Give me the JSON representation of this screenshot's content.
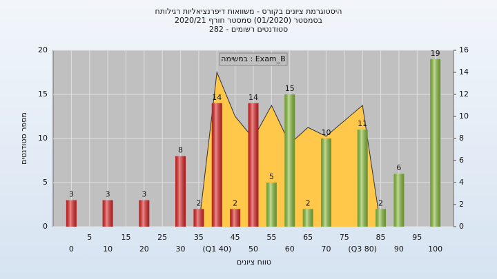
{
  "chart_data": {
    "type": "bar",
    "title_lines": [
      "היסטוגרמת ציונים בקורס - משוואות דיפרנציאליות רגילותח",
      "בסמסטר (01/2020) סמסטר חורף 2020/21",
      "סטודנטים רשומים - 282"
    ],
    "annotation": "במשימה : Exam_B",
    "xlabel": "טווח ציונים",
    "ylabel": "מספר סטודנטים",
    "x": [
      0,
      10,
      20,
      30,
      35,
      40,
      45,
      50,
      55,
      60,
      65,
      70,
      80,
      85,
      90,
      100
    ],
    "values": [
      3,
      3,
      3,
      8,
      2,
      14,
      2,
      14,
      5,
      15,
      2,
      10,
      11,
      2,
      6,
      19
    ],
    "colors": [
      "#e02828",
      "#e02828",
      "#e02828",
      "#e02828",
      "#e02828",
      "#e02828",
      "#e02828",
      "#e02828",
      "#8cc040",
      "#8cc040",
      "#8cc040",
      "#8cc040",
      "#8cc040",
      "#8cc040",
      "#8cc040",
      "#8cc040"
    ],
    "area": {
      "x": [
        35,
        40,
        45,
        50,
        55,
        60,
        65,
        70,
        75,
        80,
        85
      ],
      "values": [
        0,
        14,
        10,
        8,
        11,
        7.5,
        9,
        8.2,
        9.6,
        11,
        0
      ],
      "color": "#ffc84a",
      "axis": "y2"
    },
    "xlim": [
      -5,
      105
    ],
    "xticks": [
      0,
      5,
      10,
      15,
      20,
      25,
      30,
      35,
      {
        "value": 40,
        "label": "(Q1 40)"
      },
      45,
      50,
      55,
      60,
      65,
      70,
      75,
      {
        "value": 80,
        "label": "(Q3 80)"
      },
      85,
      90,
      95,
      100
    ],
    "ylim": [
      0,
      20
    ],
    "yticks": [
      0,
      5,
      10,
      15,
      20
    ],
    "y2lim": [
      0,
      16
    ],
    "y2ticks": [
      0,
      2,
      4,
      6,
      8,
      10,
      12,
      14,
      16
    ],
    "grid": true
  }
}
